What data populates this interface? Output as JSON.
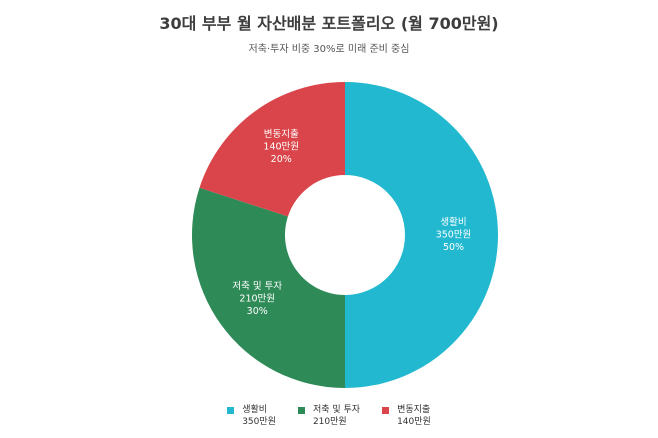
{
  "chart_data": {
    "type": "pie",
    "title": "30대 부부 월 자산배분 포트폴리오 (월 700만원)",
    "subtitle": "저축·투자 비중 30%로 미래 준비 중심",
    "donut": true,
    "legend_position": "bottom",
    "slices": [
      {
        "label": "생활비",
        "value": 350,
        "value_label": "350만원",
        "percent_label": "50%",
        "color": "#22b8d0"
      },
      {
        "label": "저축 및 투자",
        "value": 210,
        "value_label": "210만원",
        "percent_label": "30%",
        "color": "#2e8b57"
      },
      {
        "label": "변동지출",
        "value": 140,
        "value_label": "140만원",
        "percent_label": "20%",
        "color": "#d9454a"
      }
    ]
  }
}
